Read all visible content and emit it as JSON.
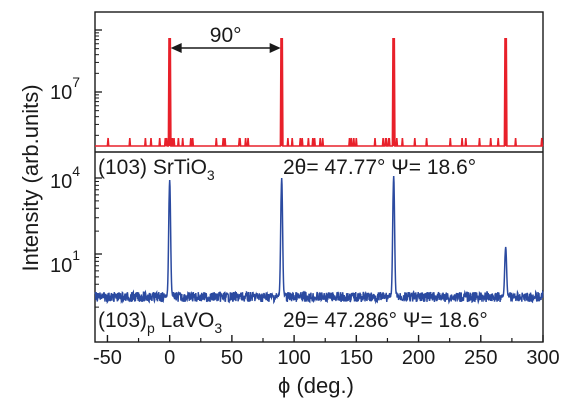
{
  "chart_data": {
    "type": "line",
    "xlabel": "ϕ (deg.)",
    "ylabel": "Intensity (arb.units)",
    "xlim": [
      -60,
      300
    ],
    "x_ticks": [
      "-50",
      "0",
      "50",
      "100",
      "150",
      "200",
      "250",
      "300"
    ],
    "log_scale_y": true,
    "grid": false,
    "panels": [
      {
        "color": "#e8202a",
        "y_ticks": [
          "10",
          "10"
        ],
        "y_tick_exps": [
          "7",
          "4"
        ],
        "label_main": "(103) SrTiO",
        "label_sub": "3",
        "label_sub2": "",
        "label_rest": "",
        "angles": "2θ= 47.77° Ψ= 18.6°",
        "peaks_phi": [
          0,
          90,
          180,
          270
        ]
      },
      {
        "color": "#2b4aa0",
        "y_ticks": [
          "10"
        ],
        "y_tick_exps": [
          "1"
        ],
        "label_main": "(103)",
        "label_sub": "p",
        "label_sub2": "3",
        "label_rest": " LaVO",
        "angles": "2θ= 47.286° Ψ= 18.6°",
        "peaks_phi": [
          0,
          90,
          180,
          270
        ]
      }
    ],
    "annotation": {
      "text": "90°",
      "from_phi": 0,
      "to_phi": 90
    }
  }
}
